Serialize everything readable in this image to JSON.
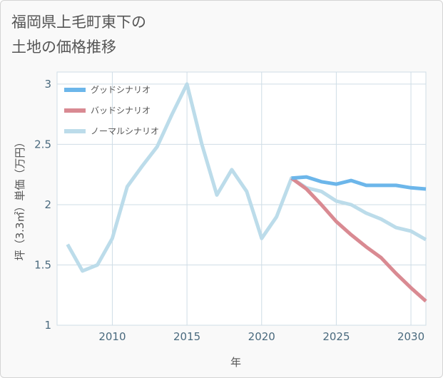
{
  "title_line1": "福岡県上毛町東下の",
  "title_line2": "土地の価格推移",
  "chart_data": {
    "type": "line",
    "xlabel": "年",
    "ylabel": "坪（3.3㎡）単価（万円）",
    "xlim": [
      2006.3,
      2031
    ],
    "ylim": [
      1,
      3.1
    ],
    "x_ticks": [
      2010,
      2015,
      2020,
      2025,
      2030
    ],
    "y_ticks": [
      1,
      1.5,
      2,
      2.5,
      3
    ],
    "x_tick_labels": [
      "2010",
      "2015",
      "2020",
      "2025",
      "2030"
    ],
    "y_tick_labels": [
      "1",
      "1.5",
      "2",
      "2.5",
      "3"
    ],
    "legend_position": "top-left",
    "series": [
      {
        "name": "グッドシナリオ",
        "color": "#6cb6ea",
        "x": [
          2022,
          2023,
          2024,
          2025,
          2026,
          2027,
          2028,
          2029,
          2030,
          2031
        ],
        "values": [
          2.22,
          2.23,
          2.19,
          2.17,
          2.2,
          2.16,
          2.16,
          2.16,
          2.14,
          2.13
        ]
      },
      {
        "name": "バッドシナリオ",
        "color": "#d98a92",
        "x": [
          2022,
          2023,
          2024,
          2025,
          2026,
          2027,
          2028,
          2029,
          2030,
          2031
        ],
        "values": [
          2.22,
          2.13,
          2.0,
          1.86,
          1.75,
          1.65,
          1.56,
          1.43,
          1.31,
          1.2
        ]
      },
      {
        "name": "ノーマルシナリオ",
        "color": "#bcdcea",
        "x": [
          2007,
          2008,
          2009,
          2010,
          2011,
          2012,
          2013,
          2014,
          2015,
          2016,
          2017,
          2018,
          2019,
          2020,
          2021,
          2022,
          2023,
          2024,
          2025,
          2026,
          2027,
          2028,
          2029,
          2030,
          2031
        ],
        "values": [
          1.67,
          1.45,
          1.5,
          1.72,
          2.15,
          2.32,
          2.48,
          2.75,
          3.0,
          2.5,
          2.08,
          2.29,
          2.11,
          1.72,
          1.9,
          2.22,
          2.14,
          2.11,
          2.03,
          2.0,
          1.93,
          1.88,
          1.81,
          1.78,
          1.71
        ]
      }
    ]
  }
}
